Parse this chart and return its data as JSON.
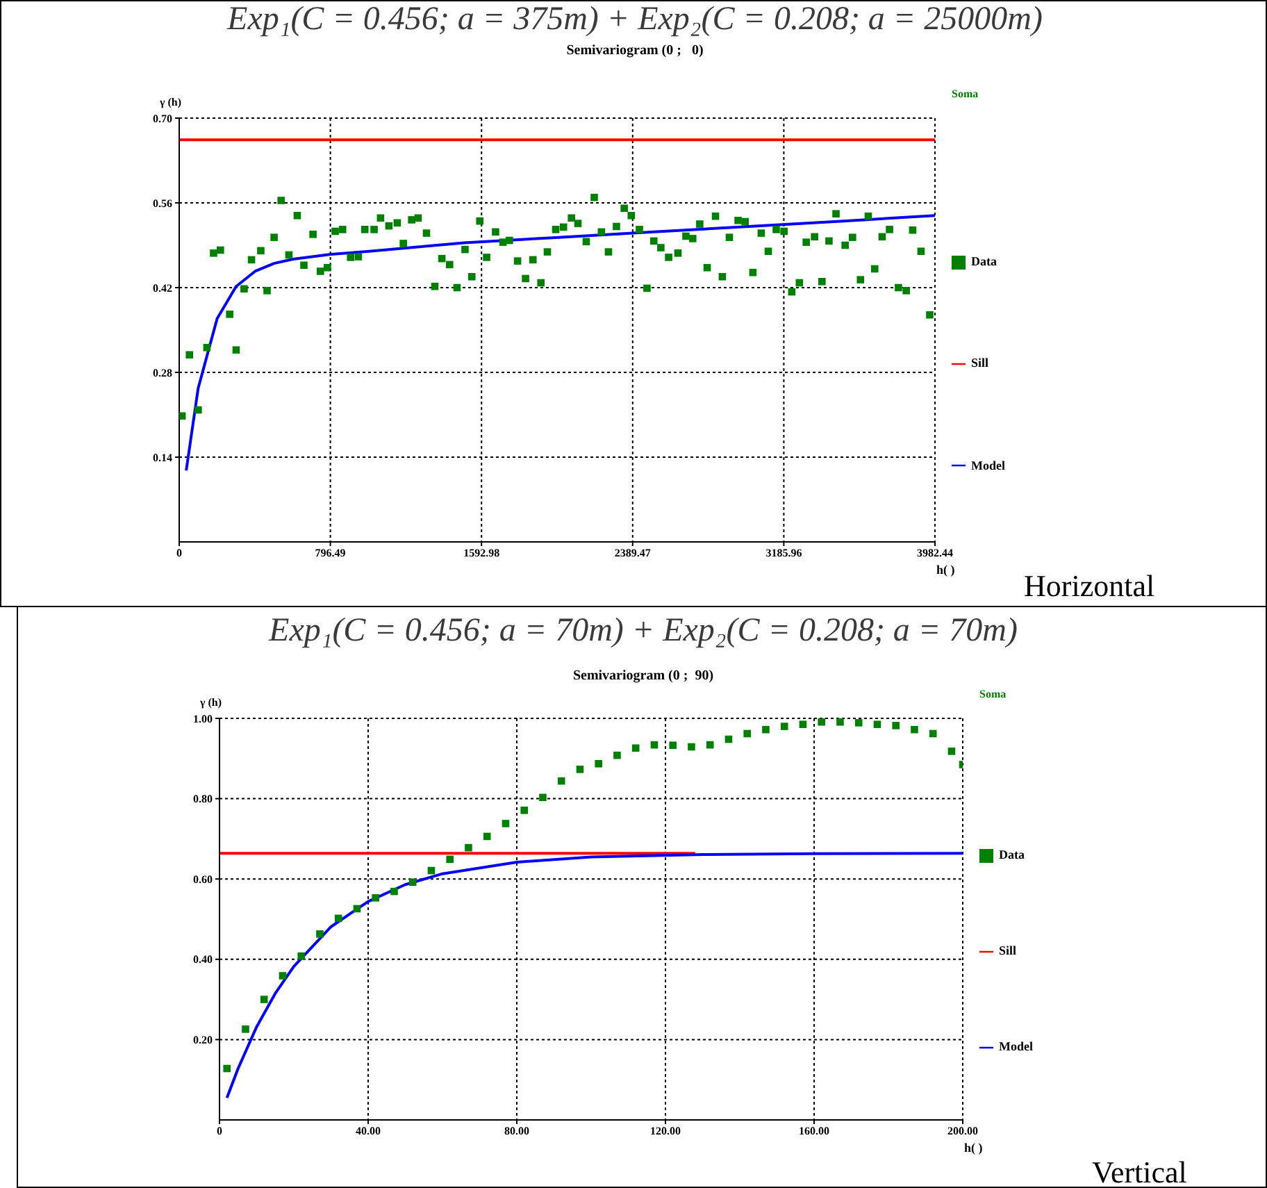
{
  "chart_data": [
    {
      "type": "scatter",
      "title": "Exp₁(C = 0.456; a = 375m) + Exp₂(C = 0.208; a = 25000m)",
      "subtitle": "Semivariogram (0 ;   0)",
      "xlabel": "h( )",
      "ylabel": "γ (h)",
      "legend_title": "Soma",
      "annotations": [
        "Horizontal"
      ],
      "xlim": [
        0,
        3982.44
      ],
      "xticks": [
        0,
        796.49,
        1592.98,
        2389.47,
        3185.96,
        3982.44
      ],
      "ylim": [
        0,
        0.7
      ],
      "yticks": [
        0.14,
        0.28,
        0.42,
        0.56,
        {
          "value": 0.7,
          "label": "0.70"
        }
      ],
      "grid": true,
      "legend": "right",
      "line_style": "solid",
      "series": [
        {
          "name": "Data",
          "type": "scatter",
          "marker": "square",
          "color": "#008000",
          "x": [
            15,
            54,
            100,
            146,
            181,
            217,
            266,
            300,
            342,
            381,
            430,
            463,
            500,
            537,
            578,
            622,
            657,
            705,
            744,
            781,
            822,
            861,
            903,
            944,
            978,
            1027,
            1061,
            1105,
            1149,
            1181,
            1225,
            1259,
            1303,
            1347,
            1384,
            1425,
            1464,
            1506,
            1542,
            1584,
            1620,
            1667,
            1706,
            1740,
            1783,
            1825,
            1864,
            1906,
            1940,
            1984,
            2025,
            2067,
            2101,
            2145,
            2187,
            2225,
            2262,
            2304,
            2345,
            2382,
            2425,
            2465,
            2501,
            2538,
            2579,
            2628,
            2670,
            2706,
            2743,
            2782,
            2826,
            2862,
            2899,
            2945,
            2982,
            3023,
            3067,
            3104,
            3146,
            3187,
            3228,
            3268,
            3304,
            3348,
            3387,
            3424,
            3461,
            3509,
            3548,
            3590,
            3631,
            3665,
            3704,
            3743,
            3790,
            3831,
            3865,
            3909,
            3955
          ],
          "values": [
            0.208,
            0.309,
            0.218,
            0.321,
            0.477,
            0.482,
            0.376,
            0.317,
            0.418,
            0.466,
            0.481,
            0.415,
            0.503,
            0.564,
            0.474,
            0.539,
            0.457,
            0.508,
            0.447,
            0.453,
            0.513,
            0.516,
            0.47,
            0.471,
            0.516,
            0.516,
            0.535,
            0.522,
            0.527,
            0.493,
            0.532,
            0.535,
            0.51,
            0.422,
            0.468,
            0.458,
            0.42,
            0.483,
            0.438,
            0.53,
            0.47,
            0.512,
            0.495,
            0.498,
            0.464,
            0.435,
            0.466,
            0.428,
            0.479,
            0.516,
            0.52,
            0.535,
            0.526,
            0.496,
            0.569,
            0.512,
            0.479,
            0.521,
            0.551,
            0.539,
            0.516,
            0.419,
            0.497,
            0.486,
            0.47,
            0.477,
            0.505,
            0.501,
            0.525,
            0.453,
            0.538,
            0.438,
            0.503,
            0.531,
            0.529,
            0.445,
            0.51,
            0.48,
            0.516,
            0.513,
            0.413,
            0.428,
            0.495,
            0.504,
            0.43,
            0.497,
            0.542,
            0.49,
            0.503,
            0.433,
            0.538,
            0.451,
            0.504,
            0.516,
            0.42,
            0.415,
            0.515,
            0.48,
            0.375
          ]
        },
        {
          "name": "Sill",
          "type": "line",
          "color": "#ff0000",
          "x": [
            0,
            3982.44
          ],
          "values": [
            0.664,
            0.664
          ]
        },
        {
          "name": "Model",
          "type": "line",
          "color": "#0000ff",
          "x": [
            37,
            100,
            200,
            300,
            400,
            500,
            600,
            800,
            1000,
            1500,
            2000,
            2500,
            3000,
            3500,
            3982.44
          ],
          "values": [
            0.118,
            0.254,
            0.369,
            0.422,
            0.447,
            0.46,
            0.467,
            0.475,
            0.48,
            0.494,
            0.503,
            0.512,
            0.521,
            0.53,
            0.539
          ]
        }
      ]
    },
    {
      "type": "scatter",
      "title": "Exp₁(C = 0.456; a = 70m) + Exp₂(C = 0.208; a = 70m)",
      "subtitle": "Semivariogram (0 ;  90)",
      "xlabel": "h( )",
      "ylabel": "γ (h)",
      "legend_title": "Soma",
      "annotations": [
        "Vertical"
      ],
      "xlim": [
        0,
        200
      ],
      "xticks": [
        0,
        {
          "value": 40,
          "label": "40.00"
        },
        {
          "value": 80,
          "label": "80.00"
        },
        {
          "value": 120,
          "label": "120.00"
        },
        {
          "value": 160,
          "label": "160.00"
        },
        {
          "value": 200,
          "label": "200.00"
        }
      ],
      "ylim": [
        0,
        1
      ],
      "yticks": [
        {
          "value": 0.2,
          "label": "0.20"
        },
        {
          "value": 0.4,
          "label": "0.40"
        },
        {
          "value": 0.6,
          "label": "0.60"
        },
        {
          "value": 0.8,
          "label": "0.80"
        },
        {
          "value": 1,
          "label": "1.00"
        }
      ],
      "grid": true,
      "legend": "right",
      "line_style": "solid",
      "series": [
        {
          "name": "Data",
          "type": "scatter",
          "marker": "square",
          "color": "#008000",
          "x": [
            2,
            7,
            12,
            17,
            22,
            27,
            32,
            37,
            42,
            47,
            52,
            57,
            62,
            67,
            72,
            77,
            82,
            87,
            92,
            97,
            102,
            107,
            112,
            117,
            122,
            127,
            132,
            137,
            142,
            147,
            152,
            157,
            162,
            167,
            172,
            177,
            182,
            187,
            192,
            197,
            200
          ],
          "values": [
            0.128,
            0.226,
            0.3,
            0.359,
            0.408,
            0.463,
            0.502,
            0.526,
            0.553,
            0.569,
            0.592,
            0.621,
            0.649,
            0.678,
            0.706,
            0.738,
            0.771,
            0.803,
            0.844,
            0.873,
            0.887,
            0.908,
            0.926,
            0.934,
            0.933,
            0.929,
            0.934,
            0.948,
            0.962,
            0.972,
            0.98,
            0.985,
            0.991,
            0.991,
            0.989,
            0.985,
            0.982,
            0.972,
            0.962,
            0.918,
            0.885
          ]
        },
        {
          "name": "Sill",
          "type": "line",
          "color": "#ff0000",
          "x": [
            0,
            128
          ],
          "values": [
            0.664,
            0.664
          ]
        },
        {
          "name": "Model",
          "type": "line",
          "color": "#0000ff",
          "x": [
            2,
            5,
            10,
            15,
            20,
            30,
            40,
            50,
            60,
            80,
            100,
            130,
            160,
            200
          ],
          "values": [
            0.055,
            0.128,
            0.232,
            0.315,
            0.382,
            0.481,
            0.544,
            0.586,
            0.613,
            0.642,
            0.655,
            0.661,
            0.663,
            0.664
          ]
        }
      ]
    }
  ]
}
